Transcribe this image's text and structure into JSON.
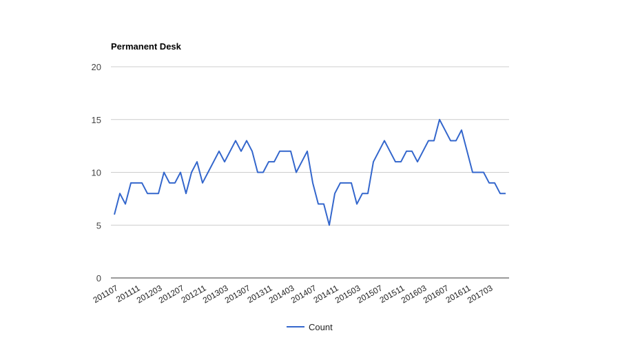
{
  "chart_data": {
    "type": "line",
    "title": "Permanent Desk",
    "ylim": [
      0,
      20
    ],
    "yticks": [
      0,
      5,
      10,
      15,
      20
    ],
    "grid": true,
    "legend_position": "bottom",
    "x": [
      "201107",
      "201108",
      "201109",
      "201110",
      "201111",
      "201112",
      "201201",
      "201202",
      "201203",
      "201204",
      "201205",
      "201206",
      "201207",
      "201208",
      "201209",
      "201210",
      "201211",
      "201212",
      "201301",
      "201302",
      "201303",
      "201304",
      "201305",
      "201306",
      "201307",
      "201308",
      "201309",
      "201310",
      "201311",
      "201312",
      "201401",
      "201402",
      "201403",
      "201404",
      "201405",
      "201406",
      "201407",
      "201408",
      "201409",
      "201410",
      "201411",
      "201412",
      "201501",
      "201502",
      "201503",
      "201504",
      "201505",
      "201506",
      "201507",
      "201508",
      "201509",
      "201510",
      "201511",
      "201512",
      "201601",
      "201602",
      "201603",
      "201604",
      "201605",
      "201606",
      "201607",
      "201608",
      "201609",
      "201610",
      "201611",
      "201612",
      "201701",
      "201702",
      "201703",
      "201704",
      "201705",
      "201706"
    ],
    "x_tick_labels": [
      "201107",
      "201111",
      "201203",
      "201207",
      "201211",
      "201303",
      "201307",
      "201311",
      "201403",
      "201407",
      "201411",
      "201503",
      "201507",
      "201511",
      "201603",
      "201607",
      "201611",
      "201703"
    ],
    "series": [
      {
        "name": "Count",
        "color": "#3366cc",
        "values": [
          6,
          8,
          7,
          9,
          9,
          9,
          8,
          8,
          8,
          10,
          9,
          9,
          10,
          8,
          10,
          11,
          9,
          10,
          11,
          12,
          11,
          12,
          13,
          12,
          13,
          12,
          10,
          10,
          11,
          11,
          12,
          12,
          12,
          10,
          11,
          12,
          9,
          7,
          7,
          5,
          8,
          9,
          9,
          9,
          7,
          8,
          8,
          11,
          12,
          13,
          12,
          11,
          11,
          12,
          12,
          11,
          12,
          13,
          13,
          15,
          14,
          13,
          13,
          14,
          12,
          10,
          10,
          10,
          9,
          9,
          8,
          8
        ]
      }
    ]
  }
}
